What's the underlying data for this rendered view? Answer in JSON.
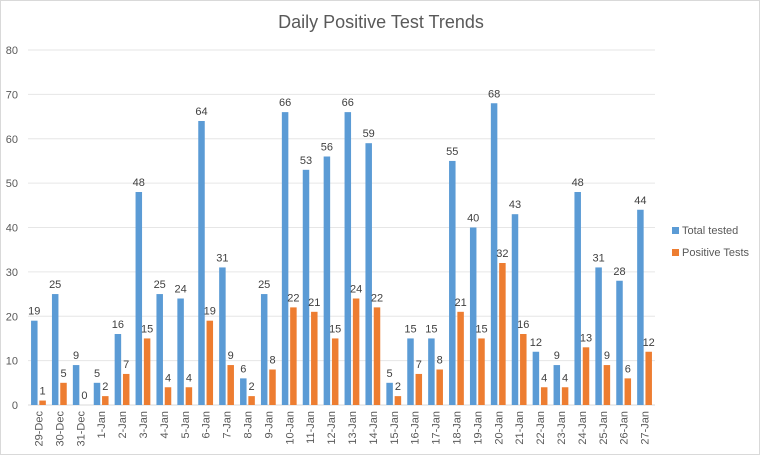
{
  "chart_data": {
    "type": "bar",
    "title": "Daily Positive Test Trends",
    "xlabel": "",
    "ylabel": "",
    "ylim": [
      0,
      80
    ],
    "yticks": [
      0,
      10,
      20,
      30,
      40,
      50,
      60,
      70,
      80
    ],
    "grid": true,
    "legend_position": "right",
    "categories": [
      "29-Dec",
      "30-Dec",
      "31-Dec",
      "1-Jan",
      "2-Jan",
      "3-Jan",
      "4-Jan",
      "5-Jan",
      "6-Jan",
      "7-Jan",
      "8-Jan",
      "9-Jan",
      "10-Jan",
      "11-Jan",
      "12-Jan",
      "13-Jan",
      "14-Jan",
      "15-Jan",
      "16-Jan",
      "17-Jan",
      "18-Jan",
      "19-Jan",
      "20-Jan",
      "21-Jan",
      "22-Jan",
      "23-Jan",
      "24-Jan",
      "25-Jan",
      "26-Jan",
      "27-Jan"
    ],
    "series": [
      {
        "name": "Total tested",
        "color": "#5b9bd5",
        "values": [
          19,
          25,
          9,
          5,
          16,
          48,
          25,
          24,
          64,
          31,
          6,
          25,
          66,
          53,
          56,
          66,
          59,
          5,
          15,
          15,
          55,
          40,
          68,
          43,
          12,
          9,
          48,
          31,
          28,
          44
        ]
      },
      {
        "name": "Positive Tests",
        "color": "#ed7d31",
        "values": [
          1,
          5,
          0,
          2,
          7,
          15,
          4,
          4,
          19,
          9,
          2,
          8,
          22,
          21,
          15,
          24,
          22,
          2,
          7,
          8,
          21,
          15,
          32,
          16,
          4,
          4,
          13,
          9,
          6,
          12
        ]
      }
    ]
  }
}
